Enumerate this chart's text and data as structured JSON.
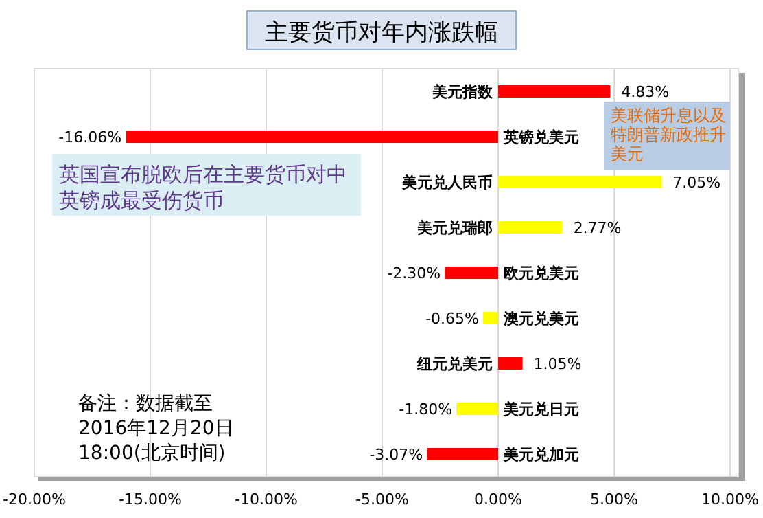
{
  "chart_data": {
    "type": "bar",
    "orientation": "horizontal",
    "title": "主要货币对年内涨跌幅",
    "categories": [
      "美元指数",
      "英镑兑美元",
      "美元兑人民币",
      "美元兑瑞郎",
      "欧元兑美元",
      "澳元兑美元",
      "纽元兑美元",
      "美元兑日元",
      "美元兑加元"
    ],
    "values": [
      4.83,
      -16.06,
      7.05,
      2.77,
      -2.3,
      -0.65,
      1.05,
      -1.8,
      -3.07
    ],
    "colors": [
      "#ff0000",
      "#ff0000",
      "#ffff00",
      "#ffff00",
      "#ff0000",
      "#ffff00",
      "#ff0000",
      "#ffff00",
      "#ff0000"
    ],
    "value_labels": [
      "4.83%",
      "-16.06%",
      "7.05%",
      "2.77%",
      "-2.30%",
      "-0.65%",
      "1.05%",
      "-1.80%",
      "-3.07%"
    ],
    "xlim": [
      -20,
      10
    ],
    "xticks": [
      {
        "value": -20,
        "label": "-20.00%"
      },
      {
        "value": -15,
        "label": "-15.00%"
      },
      {
        "value": -10,
        "label": "-10.00%"
      },
      {
        "value": -5,
        "label": "-5.00%"
      },
      {
        "value": 0,
        "label": "0.00%"
      },
      {
        "value": 5,
        "label": "5.00%"
      },
      {
        "value": 10,
        "label": "10.00%"
      }
    ],
    "grid": "x",
    "annotations": [
      "美联储升息以及特朗普新政推升美元",
      "英国宣布脱欧后在主要货币对中英镑成最受伤货币",
      "备注：数据截至2016年12月20日18:00(北京时间)"
    ]
  }
}
